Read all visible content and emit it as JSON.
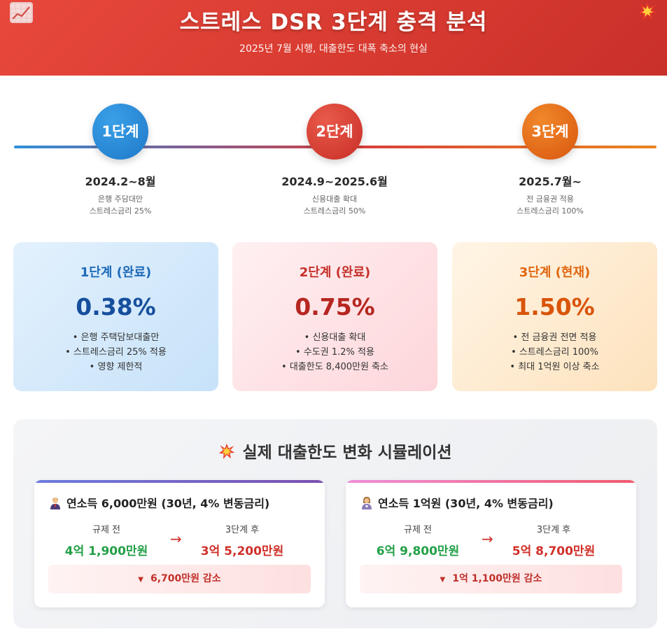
{
  "header": {
    "title": "스트레스 DSR 3단계 충격 분석",
    "subtitle": "2025년 7월 시행, 대출한도 대폭 축소의 현실",
    "left_icon": "chart-increasing-icon",
    "right_icon": "collision-icon"
  },
  "timeline": [
    {
      "label": "1단계",
      "date": "2024.2~8월",
      "desc1": "은행 주담대만",
      "desc2": "스트레스금리 25%",
      "color": "#2f8fd8"
    },
    {
      "label": "2단계",
      "date": "2024.9~2025.6월",
      "desc1": "신용대출 확대",
      "desc2": "스트레스금리 50%",
      "color": "#d8403a"
    },
    {
      "label": "3단계",
      "date": "2025.7월~",
      "desc1": "전 금융권 적용",
      "desc2": "스트레스금리 100%",
      "color": "#e4682a"
    }
  ],
  "cards": [
    {
      "title": "1단계 (완료)",
      "rate": "0.38%",
      "items": [
        "은행 주택담보대출만",
        "스트레스금리 25% 적용",
        "영향 제한적"
      ]
    },
    {
      "title": "2단계 (완료)",
      "rate": "0.75%",
      "items": [
        "신용대출 확대",
        "수도권 1.2% 적용",
        "대출한도 8,400만원 축소"
      ]
    },
    {
      "title": "3단계 (현재)",
      "rate": "1.50%",
      "items": [
        "전 금융권 전면 적용",
        "스트레스금리 100%",
        "최대 1억원 이상 축소"
      ]
    }
  ],
  "simulation": {
    "title": "실제 대출한도 변화 시뮬레이션",
    "title_icon": "collision-icon",
    "cases": [
      {
        "heading": "연소득 6,000만원 (30년, 4% 변동금리)",
        "icon": "man-office-worker-icon",
        "before_label": "규제 전",
        "before_value": "4억 1,900만원",
        "after_label": "3단계 후",
        "after_value": "3억 5,200만원",
        "arrow": "→",
        "decrease": "6,700만원 감소"
      },
      {
        "heading": "연소득 1억원 (30년, 4% 변동금리)",
        "icon": "woman-office-worker-icon",
        "before_label": "규제 전",
        "before_value": "6억 9,800만원",
        "after_label": "3단계 후",
        "after_value": "5억 8,700만원",
        "arrow": "→",
        "decrease": "1억 1,100만원 감소"
      }
    ]
  }
}
